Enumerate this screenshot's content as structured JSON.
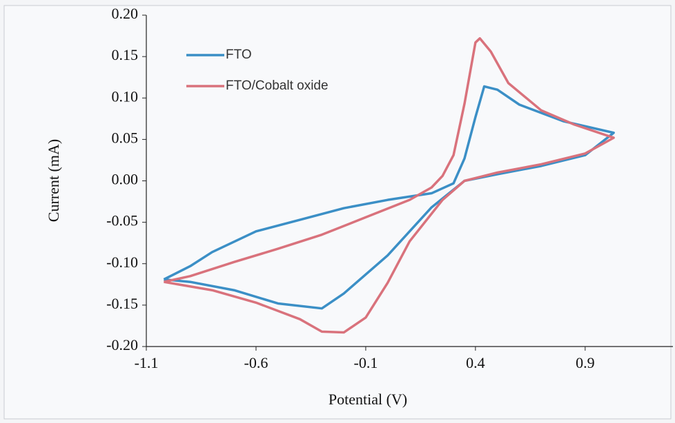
{
  "chart_data": {
    "type": "line",
    "x_label": "Potential (V)",
    "y_label": "Current (mA)",
    "xlim": [
      -1.1,
      1.3
    ],
    "xticks": [
      -1.1,
      -0.6,
      -0.1,
      0.4,
      0.9
    ],
    "ylim": [
      -0.2,
      0.2
    ],
    "yticks": [
      {
        "value": -0.2,
        "label": "-0.20"
      },
      -0.15,
      {
        "value": -0.1,
        "label": "-0.10"
      },
      -0.05,
      {
        "value": 0,
        "label": "0.00"
      },
      0.05,
      {
        "value": 0.1,
        "label": "0.10"
      },
      0.15,
      {
        "value": 0.2,
        "label": "0.20"
      }
    ],
    "legend_position": "upper left",
    "series": [
      {
        "name": "FTO",
        "color": "#3b8fc6",
        "x": [
          -1.02,
          -0.9,
          -0.8,
          -0.6,
          -0.4,
          -0.2,
          0.0,
          0.2,
          0.3,
          0.35,
          0.4,
          0.44,
          0.5,
          0.6,
          0.8,
          1.03,
          0.9,
          0.7,
          0.5,
          0.35,
          0.2,
          0.0,
          -0.2,
          -0.3,
          -0.5,
          -0.7,
          -0.9,
          -1.02
        ],
        "values": [
          -0.119,
          -0.103,
          -0.086,
          -0.061,
          -0.047,
          -0.033,
          -0.023,
          -0.015,
          -0.003,
          0.027,
          0.077,
          0.114,
          0.11,
          0.092,
          0.072,
          0.058,
          0.031,
          0.018,
          0.008,
          0.0,
          -0.032,
          -0.09,
          -0.136,
          -0.154,
          -0.148,
          -0.132,
          -0.122,
          -0.119
        ]
      },
      {
        "name": "FTO/Cobalt oxide",
        "color": "#d9727c",
        "x": [
          -1.02,
          -0.9,
          -0.7,
          -0.5,
          -0.3,
          -0.1,
          0.1,
          0.2,
          0.25,
          0.3,
          0.35,
          0.4,
          0.42,
          0.47,
          0.55,
          0.7,
          0.85,
          1.03,
          0.9,
          0.7,
          0.5,
          0.35,
          0.25,
          0.1,
          0.0,
          -0.1,
          -0.2,
          -0.3,
          -0.4,
          -0.6,
          -0.8,
          -1.02
        ],
        "values": [
          -0.122,
          -0.115,
          -0.098,
          -0.082,
          -0.065,
          -0.044,
          -0.023,
          -0.008,
          0.006,
          0.031,
          0.093,
          0.167,
          0.172,
          0.156,
          0.118,
          0.085,
          0.068,
          0.052,
          0.033,
          0.02,
          0.01,
          0.0,
          -0.023,
          -0.073,
          -0.123,
          -0.165,
          -0.183,
          -0.182,
          -0.167,
          -0.147,
          -0.132,
          -0.122
        ]
      }
    ]
  }
}
